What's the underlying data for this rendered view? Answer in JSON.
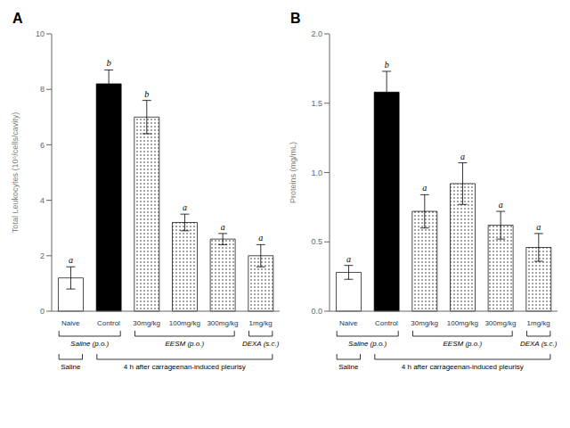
{
  "chart_data": [
    {
      "type": "bar",
      "title": "A",
      "categories": [
        "Naive",
        "Control",
        "30mg/kg",
        "100mg/kg",
        "300mg/kg",
        "1mg/kg"
      ],
      "values": [
        1.2,
        8.2,
        7.0,
        3.2,
        2.6,
        2.0
      ],
      "errors": [
        0.4,
        0.5,
        0.6,
        0.3,
        0.2,
        0.4
      ],
      "annotations": [
        "a",
        "b",
        "b",
        "a",
        "a",
        "a"
      ],
      "colors": [
        "white",
        "black",
        "hatch",
        "hatch",
        "hatch",
        "hatch"
      ],
      "ylabel": "Total Leukocytes (10⁶/cells/cavity)",
      "ylim": [
        0,
        10
      ],
      "yticks": [
        0,
        2,
        4,
        6,
        8,
        10
      ],
      "grid": false,
      "groups": [
        [
          {
            "label": "Saline (p.o.)",
            "categories": [
              "Naive",
              "Control"
            ]
          },
          {
            "label": "EESM (p.o.)",
            "categories": [
              "30mg/kg",
              "100mg/kg",
              "300mg/kg"
            ]
          },
          {
            "label": "DEXA (s.c.)",
            "categories": [
              "1mg/kg"
            ]
          }
        ],
        [
          {
            "label": "Saline",
            "categories": [
              "Naive"
            ]
          },
          {
            "label": "4 h after carrageenan-induced pleurisy",
            "categories": [
              "Control",
              "30mg/kg",
              "100mg/kg",
              "300mg/kg",
              "1mg/kg"
            ]
          }
        ]
      ]
    },
    {
      "type": "bar",
      "title": "B",
      "categories": [
        "Naive",
        "Control",
        "30mg/kg",
        "100mg/kg",
        "300mg/kg",
        "1mg/kg"
      ],
      "values": [
        0.28,
        1.58,
        0.72,
        0.92,
        0.62,
        0.46
      ],
      "errors": [
        0.05,
        0.15,
        0.12,
        0.15,
        0.1,
        0.1
      ],
      "annotations": [
        "a",
        "b",
        "a",
        "a",
        "a",
        "a"
      ],
      "colors": [
        "white",
        "black",
        "hatch",
        "hatch",
        "hatch",
        "hatch"
      ],
      "ylabel": "Proteins (mg/mL)",
      "ylim": [
        0,
        2.0
      ],
      "yticks": [
        {
          "value": 0,
          "label": "0.0"
        },
        0.5,
        {
          "value": 1,
          "label": "1.0"
        },
        1.5,
        {
          "value": 2,
          "label": "2.0"
        }
      ],
      "grid": false,
      "groups": [
        [
          {
            "label": "Saline (p.o.)",
            "categories": [
              "Naive",
              "Control"
            ]
          },
          {
            "label": "EESM (p.o.)",
            "categories": [
              "30mg/kg",
              "100mg/kg",
              "300mg/kg"
            ]
          },
          {
            "label": "DEXA (s.c.)",
            "categories": [
              "1mg/kg"
            ]
          }
        ],
        [
          {
            "label": "Saline",
            "categories": [
              "Naive"
            ]
          },
          {
            "label": "4 h after carrageenan-induced pleurisy",
            "categories": [
              "Control",
              "30mg/kg",
              "100mg/kg",
              "300mg/kg",
              "1mg/kg"
            ]
          }
        ]
      ]
    }
  ]
}
